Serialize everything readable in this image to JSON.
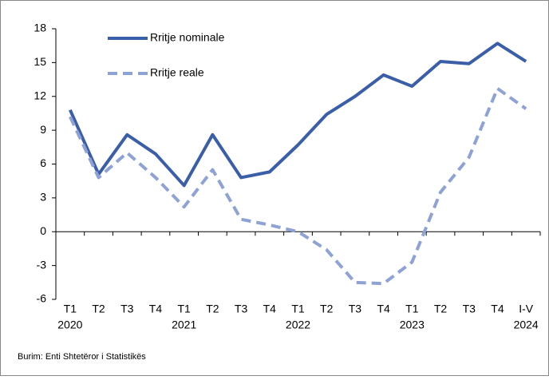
{
  "chart_data": {
    "type": "line",
    "categories": [
      "T1",
      "T2",
      "T3",
      "T4",
      "T1",
      "T2",
      "T3",
      "T4",
      "T1",
      "T2",
      "T3",
      "T4",
      "T1",
      "T2",
      "T3",
      "T4",
      "I-V"
    ],
    "years": [
      "2020",
      null,
      null,
      null,
      "2021",
      null,
      null,
      null,
      "2022",
      null,
      null,
      null,
      "2023",
      null,
      null,
      null,
      "2024"
    ],
    "series": [
      {
        "name": "Rritje nominale",
        "color": "#3a5ea8",
        "dashed": false,
        "values": [
          10.8,
          5.1,
          8.6,
          6.9,
          4.1,
          8.6,
          4.8,
          5.3,
          7.7,
          10.4,
          12.0,
          13.9,
          12.9,
          15.1,
          14.9,
          16.7,
          15.1
        ]
      },
      {
        "name": "Rritje reale",
        "color": "#8fa2d6",
        "dashed": true,
        "values": [
          10.2,
          4.8,
          7.0,
          4.8,
          2.2,
          5.5,
          1.1,
          0.6,
          0.0,
          -1.6,
          -4.5,
          -4.6,
          -2.7,
          3.5,
          6.6,
          12.7,
          10.9
        ]
      }
    ],
    "ylim": [
      -6,
      18
    ],
    "yticks": [
      -6,
      -3,
      0,
      3,
      6,
      9,
      12,
      15,
      18
    ],
    "source": "Burim: Enti Shtetëror i Statistikës"
  }
}
